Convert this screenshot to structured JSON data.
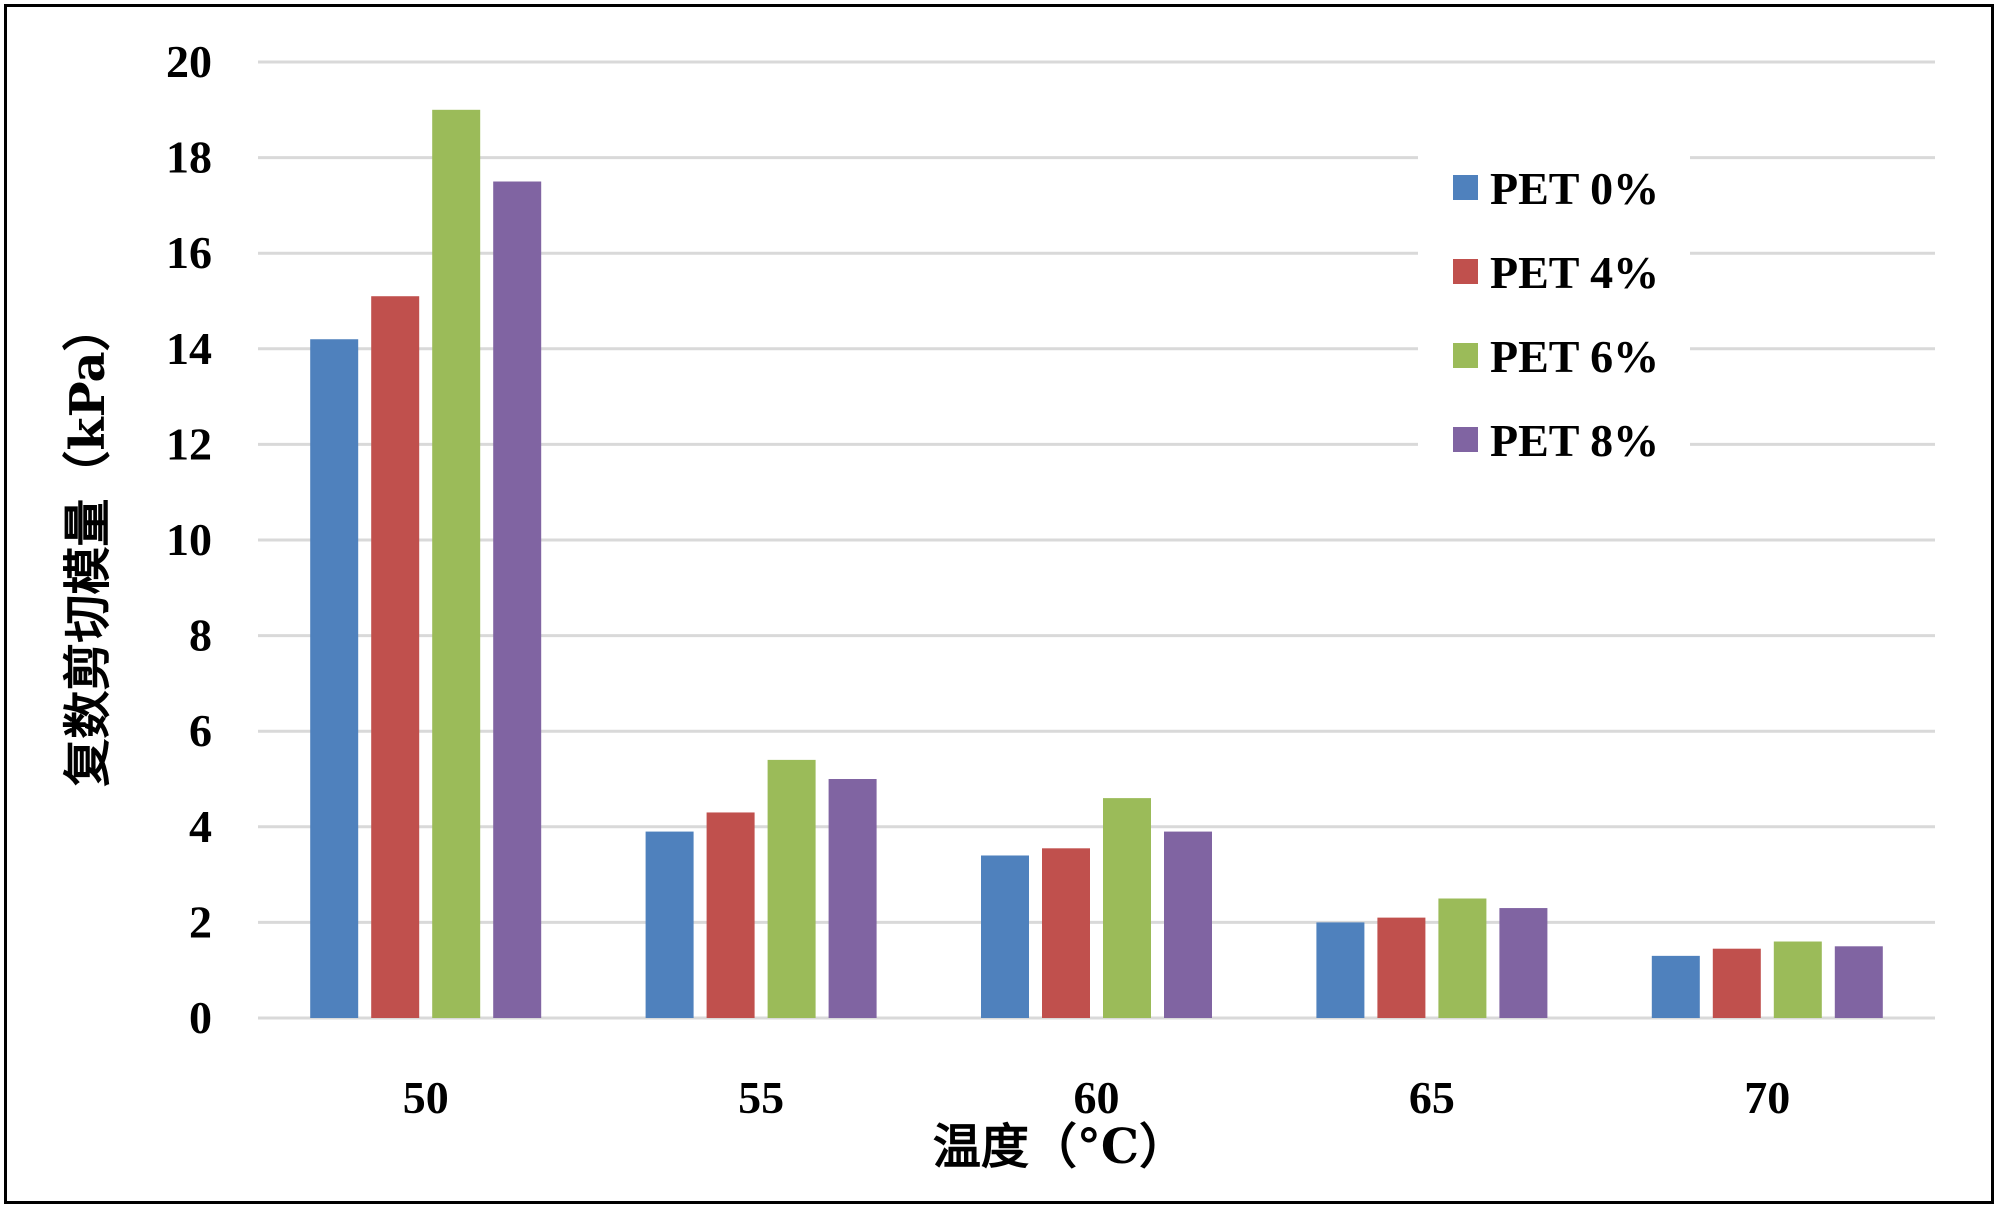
{
  "chart_data": {
    "type": "bar",
    "title": "",
    "xlabel": "温度（°C）",
    "ylabel": "复数剪切模量（kPa）",
    "categories": [
      "50",
      "55",
      "60",
      "65",
      "70"
    ],
    "series": [
      {
        "name": "PET 0%",
        "color": "#4F81BD",
        "values": [
          14.2,
          3.9,
          3.4,
          2.0,
          1.3
        ]
      },
      {
        "name": "PET 4%",
        "color": "#C0504D",
        "values": [
          15.1,
          4.3,
          3.55,
          2.1,
          1.45
        ]
      },
      {
        "name": "PET 6%",
        "color": "#9BBB59",
        "values": [
          19.0,
          5.4,
          4.6,
          2.5,
          1.6
        ]
      },
      {
        "name": "PET 8%",
        "color": "#8064A2",
        "values": [
          17.5,
          5.0,
          3.9,
          2.3,
          1.5
        ]
      }
    ],
    "ylim": [
      0,
      20
    ],
    "yticks": [
      "0",
      "2",
      "4",
      "6",
      "8",
      "10",
      "12",
      "14",
      "16",
      "18",
      "20"
    ],
    "grid": true,
    "legend": "top-right"
  }
}
